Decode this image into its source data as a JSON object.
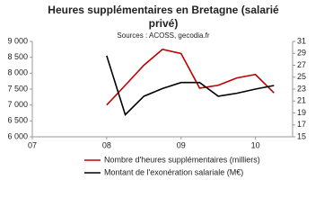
{
  "chart_data": {
    "type": "line",
    "title": "Heures supplémentaires en Bretagne (salarié",
    "title_line2": "privé)",
    "subtitle": "Sources :  ACOSS, gecodia.fr",
    "x": [
      2008,
      2008.25,
      2008.5,
      2008.75,
      2009,
      2009.25,
      2009.5,
      2009.75,
      2010,
      2010.25
    ],
    "series": [
      {
        "name": "Nombre d'heures supplémentaires (milliers)",
        "color": "#c00000",
        "values": [
          7000,
          7620,
          8250,
          8750,
          8620,
          7530,
          7620,
          7850,
          7960,
          7380
        ]
      },
      {
        "name": "Montant de l'exonération salariale (M€)",
        "color": "#000000",
        "axis": "y2",
        "values": [
          28.6,
          18.7,
          21.8,
          23.1,
          24.1,
          24.1,
          21.8,
          22.3,
          23.0,
          23.6
        ]
      }
    ],
    "xlim": [
      2007,
      2010.5
    ],
    "xticks": [
      {
        "value": 2007,
        "label": "07"
      },
      {
        "value": 2008,
        "label": "08"
      },
      {
        "value": 2009,
        "label": "09"
      },
      {
        "value": 2010,
        "label": "10"
      }
    ],
    "ylim": [
      6000,
      9000
    ],
    "yticks": [
      {
        "value": 6000,
        "label": "6 000"
      },
      {
        "value": 6500,
        "label": "6 500"
      },
      {
        "value": 7000,
        "label": "7 000"
      },
      {
        "value": 7500,
        "label": "7 500"
      },
      {
        "value": 8000,
        "label": "8 000"
      },
      {
        "value": 8500,
        "label": "8 500"
      },
      {
        "value": 9000,
        "label": "9 000"
      }
    ],
    "y2lim": [
      15,
      31
    ],
    "y2ticks": [
      15,
      17,
      19,
      21,
      23,
      25,
      27,
      29,
      31
    ],
    "legend": "bottom"
  }
}
